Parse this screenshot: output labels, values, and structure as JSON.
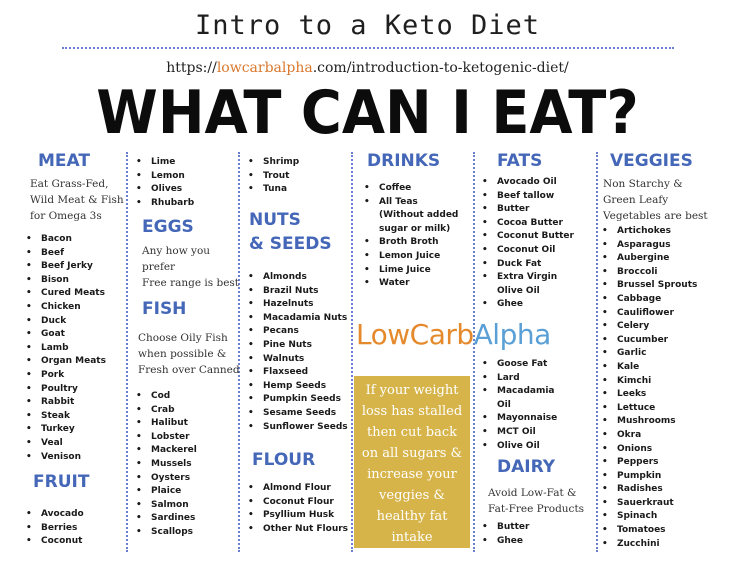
{
  "header": {
    "title": "Intro to a Keto Diet",
    "url_prefix": "https://",
    "url_site": "lowcarbalpha",
    "url_suffix": ".com/introduction-to-ketogenic-diet/",
    "headline": "WHAT CAN I EAT?"
  },
  "meat": {
    "title": "MEAT",
    "desc": [
      "Eat Grass-Fed,",
      "Wild Meat & Fish",
      "for Omega 3s"
    ],
    "items": [
      "Bacon",
      "Beef",
      "Beef Jerky",
      "Bison",
      "Cured Meats",
      "Chicken",
      "Duck",
      "Goat",
      "Lamb",
      "Organ Meats",
      "Pork",
      "Poultry",
      "Rabbit",
      "Steak",
      "Turkey",
      "Veal",
      "Venison"
    ]
  },
  "fruit": {
    "title": "FRUIT",
    "items": [
      "Avocado",
      "Berries",
      "Coconut"
    ],
    "items_col2": [
      "Lime",
      "Lemon",
      "Olives",
      "Rhubarb"
    ]
  },
  "eggs": {
    "title": "EGGS",
    "desc": [
      "Any how you",
      "prefer",
      "Free range is best"
    ]
  },
  "fish": {
    "title": "FISH",
    "desc": [
      "Choose Oily Fish",
      "when possible &",
      "Fresh over Canned"
    ],
    "items": [
      "Cod",
      "Crab",
      "Halibut",
      "Lobster",
      "Mackerel",
      "Mussels",
      "Oysters",
      "Plaice",
      "Salmon",
      "Sardines",
      "Scallops"
    ],
    "items_col3": [
      "Shrimp",
      "Trout",
      "Tuna"
    ]
  },
  "nuts": {
    "title_line1": "NUTS",
    "title_line2": "& SEEDS",
    "items": [
      "Almonds",
      "Brazil Nuts",
      "Hazelnuts",
      "Macadamia Nuts",
      "Pecans",
      "Pine Nuts",
      "Walnuts",
      "Flaxseed",
      "Hemp Seeds",
      "Pumpkin Seeds",
      "Sesame Seeds",
      "Sunflower Seeds"
    ]
  },
  "flour": {
    "title": "FLOUR",
    "items": [
      "Almond Flour",
      "Coconut Flour",
      "Psyllium Husk",
      "Other Nut Flours"
    ]
  },
  "drinks": {
    "title": "DRINKS",
    "items": [
      "Coffee",
      "All Teas",
      "(Without added",
      "sugar or milk)",
      "Broth Broth",
      "Lemon Juice",
      "Lime Juice",
      "Water"
    ]
  },
  "logo": {
    "part1": "LowCarb",
    "part2": "Alpha"
  },
  "callout": {
    "lines": [
      "If your weight",
      "loss has stalled",
      "then cut back",
      "on all sugars &",
      "increase your",
      "veggies &",
      "healthy fat",
      "intake"
    ],
    "color": "#d6b44a"
  },
  "fats": {
    "title": "FATS",
    "items": [
      "Avocado Oil",
      "Beef tallow",
      "Butter",
      "Cocoa Butter",
      "Coconut Butter",
      "Coconut Oil",
      "Duck Fat",
      "Extra Virgin",
      "Olive Oil",
      "Ghee"
    ],
    "items2": [
      "Goose Fat",
      "Lard",
      "Macadamia",
      "Oil",
      "Mayonnaise",
      "MCT Oil",
      "Olive Oil"
    ]
  },
  "dairy": {
    "title": "DAIRY",
    "desc": [
      "Avoid Low-Fat &",
      "Fat-Free Products"
    ],
    "items": [
      "Butter",
      "Ghee"
    ]
  },
  "veggies": {
    "title": "VEGGIES",
    "desc": [
      "Non Starchy &",
      "Green Leafy",
      "Vegetables are best"
    ],
    "items": [
      "Artichokes",
      "Asparagus",
      "Aubergine",
      "Broccoli",
      "Brussel Sprouts",
      "Cabbage",
      "Cauliflower",
      "Celery",
      "Cucumber",
      "Garlic",
      "Kale",
      "Kimchi",
      "Leeks",
      "Lettuce",
      "Mushrooms",
      "Okra",
      "Onions",
      "Peppers",
      "Pumpkin",
      "Radishes",
      "Sauerkraut",
      "Spinach",
      "Tomatoes",
      "Zucchini"
    ]
  },
  "colors": {
    "category_blue": "#4567b8",
    "logo_orange": "#e58a2c",
    "logo_blue": "#5aa0d6",
    "dots": "#6b7fd0"
  }
}
